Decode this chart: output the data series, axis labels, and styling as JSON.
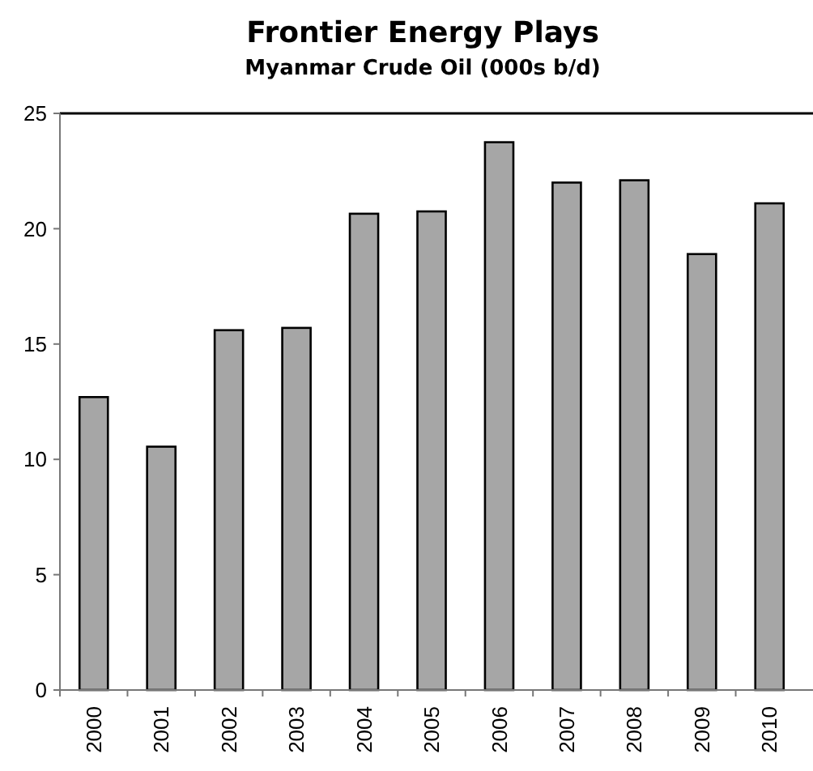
{
  "chart_data": {
    "type": "bar",
    "title": "Frontier Energy Plays",
    "subtitle": "Myanmar Crude Oil (000s b/d)",
    "categories": [
      "2000",
      "2001",
      "2002",
      "2003",
      "2004",
      "2005",
      "2006",
      "2007",
      "2008",
      "2009",
      "2010"
    ],
    "values": [
      12.7,
      10.55,
      15.6,
      15.7,
      20.65,
      20.75,
      23.75,
      22,
      22.1,
      18.9,
      21.1
    ],
    "color": "#a6a6a6",
    "ylim": [
      0,
      25
    ],
    "yticks": [
      0,
      5,
      10,
      15,
      20,
      25
    ],
    "grid": false
  }
}
